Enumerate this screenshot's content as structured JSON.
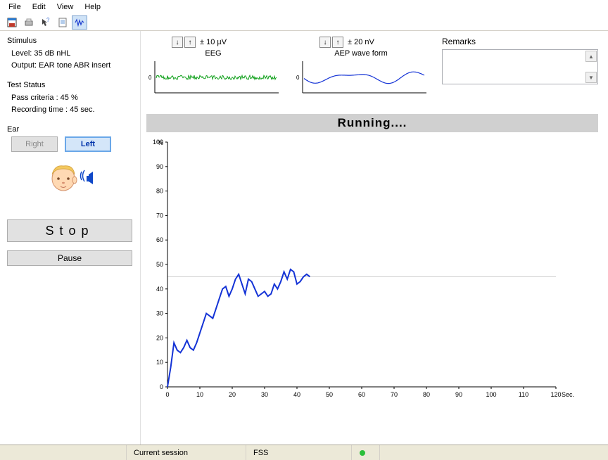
{
  "menu": {
    "items": [
      "File",
      "Edit",
      "View",
      "Help"
    ]
  },
  "sidebar": {
    "stimulus": {
      "title": "Stimulus",
      "level": "Level: 35 dB nHL",
      "output": "Output: EAR tone ABR insert"
    },
    "test_status": {
      "title": "Test Status",
      "pass": "Pass criteria    : 45 %",
      "time": "Recording time : 45 sec."
    },
    "ear": {
      "title": "Ear",
      "right": "Right",
      "left": "Left",
      "selected": "left"
    },
    "buttons": {
      "stop": "Stop",
      "pause": "Pause"
    }
  },
  "mini": {
    "eeg": {
      "range": "± 10 µV",
      "label": "EEG",
      "color": "#0fa01a"
    },
    "aep": {
      "range": "± 20 nV",
      "label": "AEP wave form",
      "color": "#1433d6"
    }
  },
  "remarks": {
    "label": "Remarks",
    "value": ""
  },
  "running_text": "Running....",
  "main_chart": {
    "type": "line",
    "y_unit": "%",
    "x_unit": "Sec.",
    "ylim": [
      0,
      100
    ],
    "ytick_step": 10,
    "xlim": [
      0,
      120
    ],
    "xtick_step": 10,
    "line_color": "#1433d6",
    "line_width": 2,
    "pass_line": {
      "y": 45,
      "color": "#d0d0d0"
    },
    "background": "#ffffff",
    "axis_color": "#000000",
    "tick_font_size": 9,
    "series": [
      [
        0,
        0
      ],
      [
        1,
        8
      ],
      [
        2,
        18
      ],
      [
        3,
        15
      ],
      [
        4,
        14
      ],
      [
        5,
        16
      ],
      [
        6,
        19
      ],
      [
        7,
        16
      ],
      [
        8,
        15
      ],
      [
        9,
        18
      ],
      [
        10,
        22
      ],
      [
        11,
        26
      ],
      [
        12,
        30
      ],
      [
        13,
        29
      ],
      [
        14,
        28
      ],
      [
        15,
        32
      ],
      [
        16,
        36
      ],
      [
        17,
        40
      ],
      [
        18,
        41
      ],
      [
        19,
        37
      ],
      [
        20,
        40
      ],
      [
        21,
        44
      ],
      [
        22,
        46
      ],
      [
        23,
        42
      ],
      [
        24,
        38
      ],
      [
        25,
        44
      ],
      [
        26,
        43
      ],
      [
        27,
        40
      ],
      [
        28,
        37
      ],
      [
        29,
        38
      ],
      [
        30,
        39
      ],
      [
        31,
        37
      ],
      [
        32,
        38
      ],
      [
        33,
        42
      ],
      [
        34,
        40
      ],
      [
        35,
        43
      ],
      [
        36,
        47
      ],
      [
        37,
        44
      ],
      [
        38,
        48
      ],
      [
        39,
        47
      ],
      [
        40,
        42
      ],
      [
        41,
        43
      ],
      [
        42,
        45
      ],
      [
        43,
        46
      ],
      [
        44,
        45
      ]
    ]
  },
  "statusbar": {
    "session": "Current session",
    "fss": "FSS"
  }
}
